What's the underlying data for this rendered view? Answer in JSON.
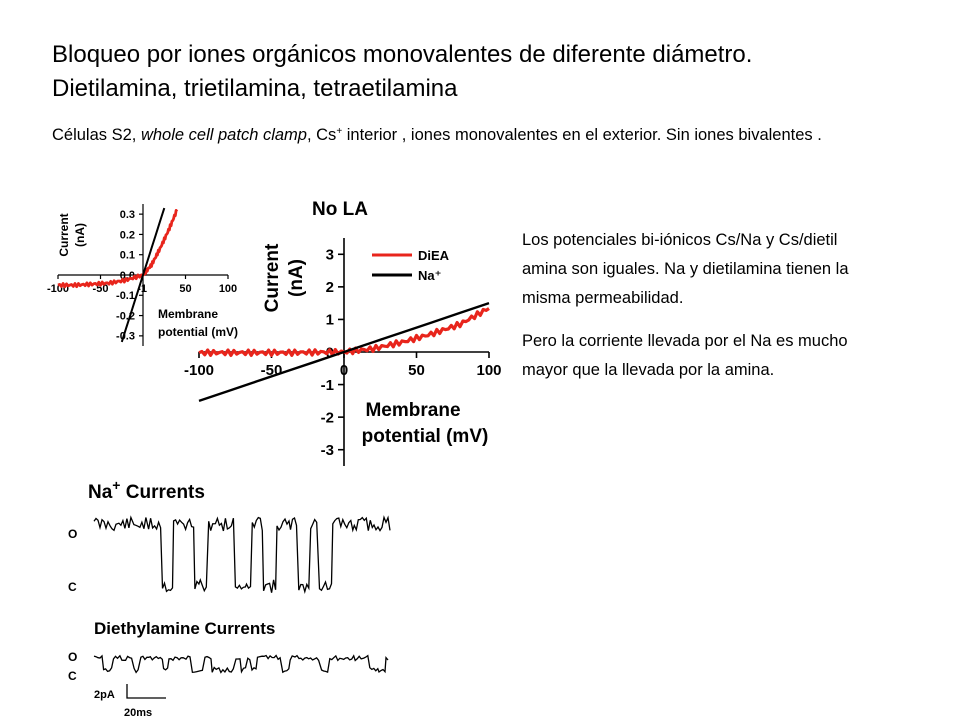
{
  "slide": {
    "title_line1": "Bloqueo por iones orgánicos monovalentes de diferente diámetro.",
    "title_line2": "Dietilamina,  trietilamina, tetraetilamina",
    "subtitle_before_italic": "Células  S2, ",
    "subtitle_italic": "whole cell patch clamp",
    "subtitle_after_italic": ", Cs",
    "subtitle_sup": "+",
    "subtitle_rest": " interior , iones monovalentes en el exterior. Sin iones bivalentes ."
  },
  "notes": {
    "paragraph1": "Los potenciales bi-iónicos Cs/Na y Cs/dietil amina son iguales. Na y dietilamina tienen la misma permeabilidad.",
    "paragraph2": "Pero la corriente llevada por el Na es mucho mayor que la llevada por la amina."
  },
  "chart_data": [
    {
      "type": "line",
      "title": "No LA",
      "xlabel": "Membrane potential (mV)",
      "ylabel": "Current (nA)",
      "xlim": [
        -100,
        100
      ],
      "ylim": [
        -3.5,
        3.5
      ],
      "xticks": [
        "-100",
        "-50",
        "0",
        "50",
        "100"
      ],
      "yticks": [
        "3",
        "2",
        "1",
        "0",
        "-1",
        "-2",
        "-3"
      ],
      "legend": "top-right",
      "series": [
        {
          "name": "DiEA",
          "color": "#e8251c",
          "x": [
            -100,
            -80,
            -60,
            -40,
            -20,
            0,
            20,
            40,
            60,
            80,
            100
          ],
          "y": [
            -0.02,
            -0.02,
            -0.02,
            -0.02,
            -0.01,
            0,
            0.1,
            0.3,
            0.55,
            0.85,
            1.35
          ]
        },
        {
          "name": "Na⁺",
          "color": "#000000",
          "x": [
            -100,
            100
          ],
          "y": [
            -1.5,
            1.5
          ]
        }
      ]
    },
    {
      "type": "line",
      "xlabel": "Membrane potential (mV)",
      "ylabel": "Current (nA)",
      "xlim": [
        -100,
        100
      ],
      "ylim": [
        -0.35,
        0.35
      ],
      "xticks": [
        "-100",
        "-50",
        "-1",
        "50",
        "100"
      ],
      "yticks": [
        "0.3",
        "0.2",
        "0.1",
        "0.0",
        "-0.1",
        "-0.2",
        "-0.3"
      ],
      "series": [
        {
          "color": "#e8251c",
          "x": [
            -100,
            -80,
            -60,
            -40,
            -20,
            0,
            10,
            20,
            30,
            40
          ],
          "y": [
            -0.05,
            -0.05,
            -0.045,
            -0.04,
            -0.025,
            0,
            0.05,
            0.13,
            0.22,
            0.32
          ]
        },
        {
          "color": "#000000",
          "x": [
            -25,
            25
          ],
          "y": [
            -0.33,
            0.33
          ]
        }
      ]
    }
  ],
  "traces": {
    "na_label": "Na",
    "na_sup": "+",
    "na_label_suffix": " Currents",
    "diethyl_label": "Diethylamine Currents",
    "open_label": "O",
    "closed_label": "C",
    "scale_current": "2pA",
    "scale_time": "20ms"
  }
}
